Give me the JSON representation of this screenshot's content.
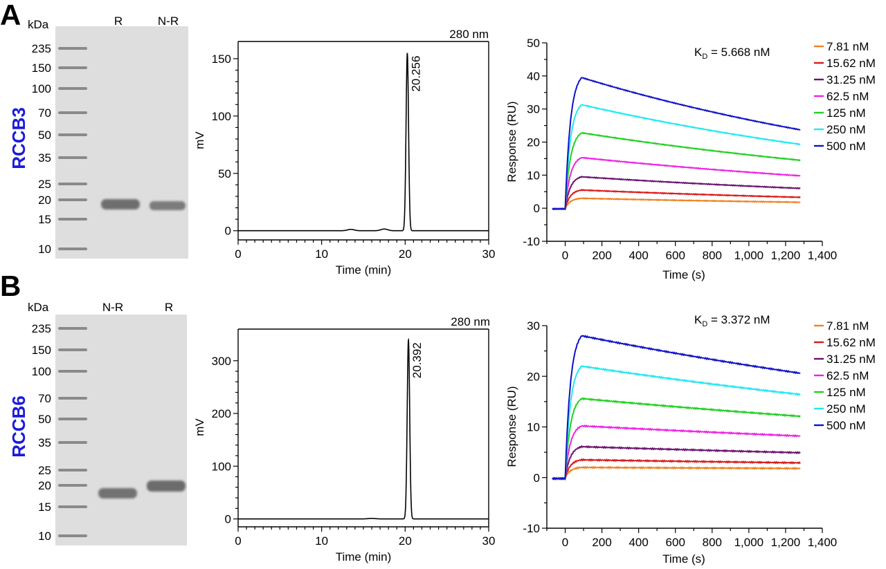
{
  "panels": [
    {
      "letter": "A",
      "construct": "RCCB3",
      "gel": {
        "unit": "kDa",
        "lanes": [
          "R",
          "N-R"
        ],
        "markers": [
          "235",
          "150",
          "100",
          "70",
          "50",
          "35",
          "25",
          "20",
          "15",
          "10"
        ]
      },
      "sec": {
        "wavelength": "280 nm",
        "xlabel": "Time (min)",
        "ylabel": "mV",
        "xticks": [
          "0",
          "10",
          "20",
          "30"
        ],
        "yticks": [
          "0",
          "50",
          "100",
          "150"
        ],
        "peak_label": "20.256"
      },
      "spr": {
        "kd_prefix": "K",
        "kd_sub": "D",
        "kd_value": " = 5.668 nM",
        "xlabel": "Time (s)",
        "ylabel": "Response (RU)",
        "xticks": [
          "0",
          "200",
          "400",
          "600",
          "800",
          "1,000",
          "1,200",
          "1,400"
        ],
        "yticks": [
          "-10",
          "0",
          "10",
          "20",
          "30",
          "40",
          "50"
        ],
        "legend": [
          "7.81 nM",
          "15.62 nM",
          "31.25 nM",
          "62.5 nM",
          "125 nM",
          "250 nM",
          "500 nM"
        ]
      }
    },
    {
      "letter": "B",
      "construct": "RCCB6",
      "gel": {
        "unit": "kDa",
        "lanes": [
          "N-R",
          "R"
        ],
        "markers": [
          "235",
          "150",
          "100",
          "70",
          "50",
          "35",
          "25",
          "20",
          "15",
          "10"
        ]
      },
      "sec": {
        "wavelength": "280 nm",
        "xlabel": "Time (min)",
        "ylabel": "mV",
        "xticks": [
          "0",
          "10",
          "20",
          "30"
        ],
        "yticks": [
          "0",
          "100",
          "200",
          "300"
        ],
        "peak_label": "20.392"
      },
      "spr": {
        "kd_prefix": "K",
        "kd_sub": "D",
        "kd_value": " = 3.372 nM",
        "xlabel": "Time (s)",
        "ylabel": "Response (RU)",
        "xticks": [
          "0",
          "200",
          "400",
          "600",
          "800",
          "1,000",
          "1,200",
          "1,400"
        ],
        "yticks": [
          "-10",
          "0",
          "10",
          "20",
          "30"
        ],
        "legend": [
          "7.81 nM",
          "15.62 nM",
          "31.25 nM",
          "62.5 nM",
          "125 nM",
          "250 nM",
          "500 nM"
        ]
      }
    }
  ],
  "colors": {
    "series": [
      "#f08020",
      "#d81818",
      "#6a1070",
      "#f020e8",
      "#20d020",
      "#20e8f0",
      "#1010c8"
    ],
    "construct_label": "#1a1adf",
    "gel_background": "#dedede",
    "band": "#7a7a7a"
  },
  "chart_data": [
    {
      "type": "line",
      "panel": "A",
      "title": "280 nm",
      "xlabel": "Time (min)",
      "ylabel": "mV",
      "xlim": [
        0,
        30
      ],
      "ylim": [
        -8,
        165
      ],
      "peak": {
        "x": 20.256,
        "y": 155,
        "width_min": 0.35
      },
      "minor_bumps": [
        {
          "x": 13.5,
          "y": 1.2
        },
        {
          "x": 17.5,
          "y": 1.5
        }
      ],
      "annotation": "20.256"
    },
    {
      "type": "line",
      "panel": "B",
      "title": "280 nm",
      "xlabel": "Time (min)",
      "ylabel": "mV",
      "xlim": [
        0,
        30
      ],
      "ylim": [
        -15,
        360
      ],
      "peak": {
        "x": 20.392,
        "y": 340,
        "width_min": 0.35
      },
      "minor_bumps": [
        {
          "x": 16.0,
          "y": 1.0
        }
      ],
      "annotation": "20.392"
    },
    {
      "type": "line",
      "panel": "A",
      "title": "K_D = 5.668 nM",
      "xlabel": "Time (s)",
      "ylabel": "Response (RU)",
      "xlim": [
        -100,
        1400
      ],
      "ylim": [
        -10,
        50
      ],
      "association_end_s": 90,
      "end_s": 1280,
      "series": [
        {
          "name": "7.81 nM",
          "peak": 3.0,
          "final": 1.8
        },
        {
          "name": "15.62 nM",
          "peak": 5.5,
          "final": 3.3
        },
        {
          "name": "31.25 nM",
          "peak": 9.5,
          "final": 6.0
        },
        {
          "name": "62.5 nM",
          "peak": 15.3,
          "final": 9.8
        },
        {
          "name": "125 nM",
          "peak": 22.8,
          "final": 14.5
        },
        {
          "name": "250 nM",
          "peak": 31.3,
          "final": 19.3
        },
        {
          "name": "500 nM",
          "peak": 39.5,
          "final": 23.7
        }
      ]
    },
    {
      "type": "line",
      "panel": "B",
      "title": "K_D = 3.372 nM",
      "xlabel": "Time (s)",
      "ylabel": "Response (RU)",
      "xlim": [
        -100,
        1400
      ],
      "ylim": [
        -10,
        30
      ],
      "association_end_s": 90,
      "end_s": 1280,
      "series": [
        {
          "name": "7.81 nM",
          "peak": 2.0,
          "final": 1.8
        },
        {
          "name": "15.62 nM",
          "peak": 3.5,
          "final": 2.9
        },
        {
          "name": "31.25 nM",
          "peak": 6.1,
          "final": 4.9
        },
        {
          "name": "62.5 nM",
          "peak": 10.2,
          "final": 8.2
        },
        {
          "name": "125 nM",
          "peak": 15.6,
          "final": 12.1
        },
        {
          "name": "250 nM",
          "peak": 22.0,
          "final": 16.4
        },
        {
          "name": "500 nM",
          "peak": 28.0,
          "final": 20.6
        }
      ]
    }
  ]
}
